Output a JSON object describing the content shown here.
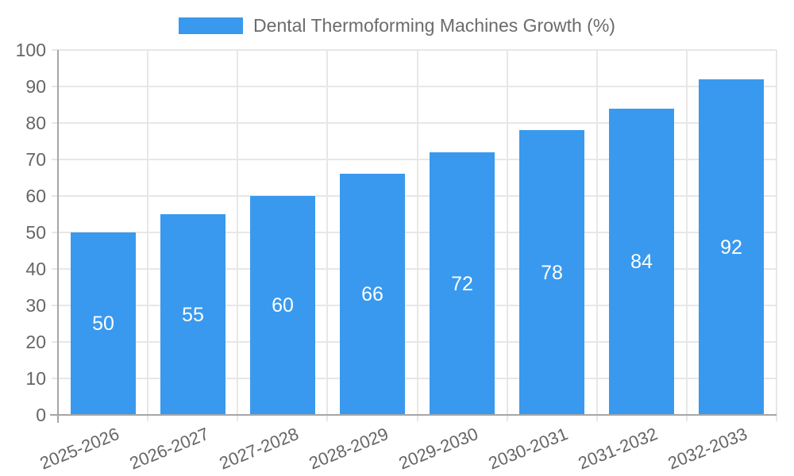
{
  "chart_data": {
    "type": "bar",
    "title": "Dental Thermoforming Machines Growth (%)",
    "categories": [
      "2025-2026",
      "2026-2027",
      "2027-2028",
      "2028-2029",
      "2029-2030",
      "2030-2031",
      "2031-2032",
      "2032-2033"
    ],
    "values": [
      50,
      55,
      60,
      66,
      72,
      78,
      84,
      92
    ],
    "xlabel": "",
    "ylabel": "",
    "ylim": [
      0,
      100
    ],
    "ytick_step": 10,
    "ytick_labels": [
      "0",
      "10",
      "20",
      "30",
      "40",
      "50",
      "60",
      "70",
      "80",
      "90",
      "100"
    ],
    "grid": true,
    "bar_value_labels_shown": true,
    "legend_position": "top-center",
    "colors": {
      "bar": "#3999EE",
      "bar_value_label": "#FFFFFF",
      "grid": "#E7E7E7",
      "axis": "#A6A6A6",
      "tick_text": "#666666",
      "legend_text": "#6B6B6B",
      "background": "#FFFFFF"
    }
  }
}
